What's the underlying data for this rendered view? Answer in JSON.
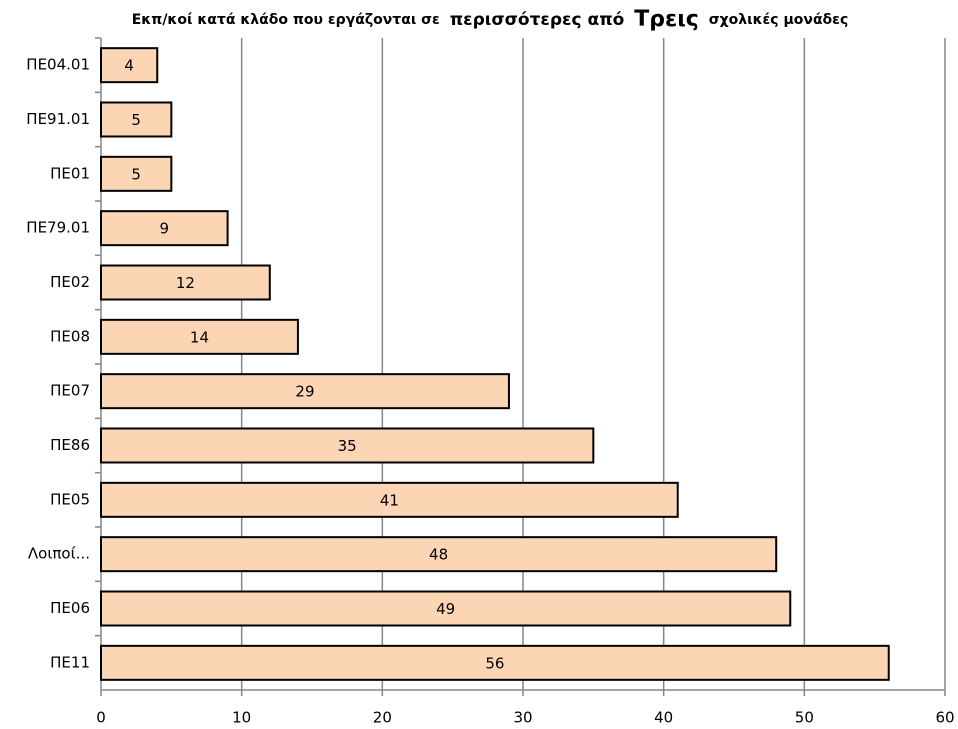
{
  "chart_data": {
    "type": "bar",
    "orientation": "horizontal",
    "title": [
      "Εκπ/κοί κατά κλάδο που εργάζονται σε",
      "περισσότερες από",
      "Τρεις",
      "σχολικές μονάδες"
    ],
    "categories": [
      "ΠΕ04.01",
      "ΠΕ91.01",
      "ΠΕ01",
      "ΠΕ79.01",
      "ΠΕ02",
      "ΠΕ08",
      "ΠΕ07",
      "ΠΕ86",
      "ΠΕ05",
      "Λοιποί...",
      "ΠΕ06",
      "ΠΕ11"
    ],
    "values": [
      4,
      5,
      5,
      9,
      12,
      14,
      29,
      35,
      41,
      48,
      49,
      56
    ],
    "color": "#fcd5b4",
    "xlim": [
      0,
      60
    ],
    "xticks": [
      0,
      10,
      20,
      30,
      40,
      50,
      60
    ],
    "grid": true
  }
}
